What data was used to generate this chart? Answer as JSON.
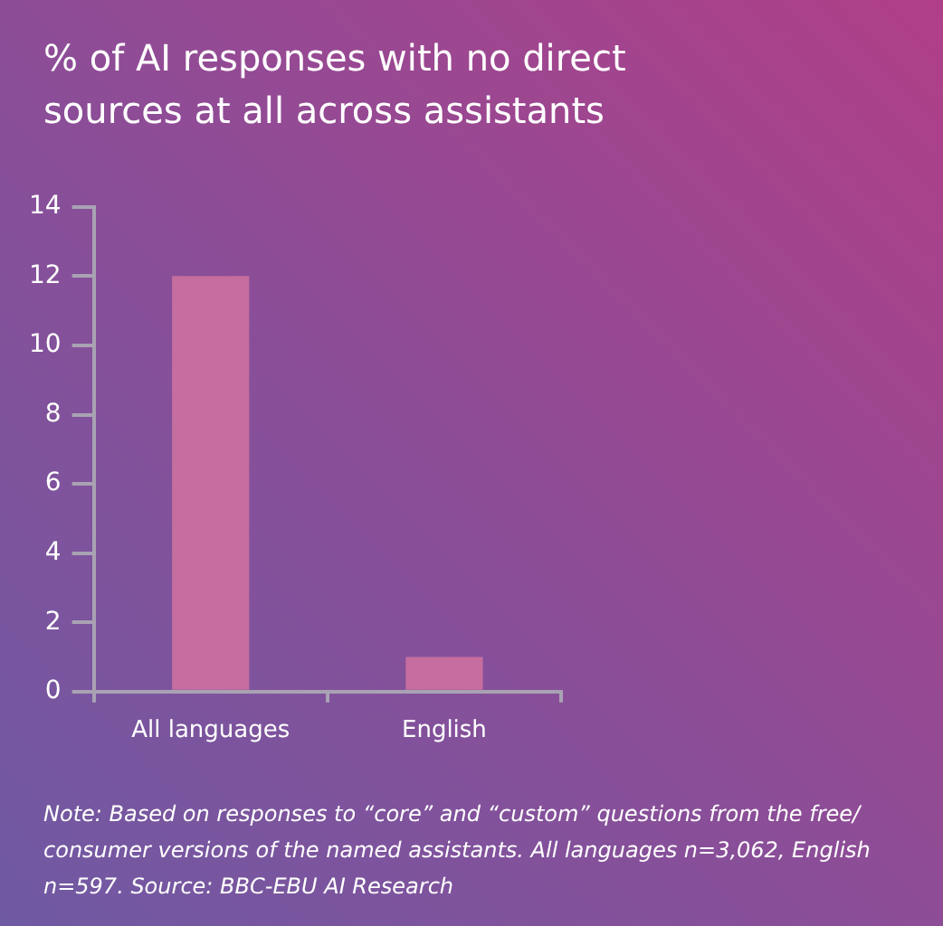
{
  "chart_data": {
    "type": "bar",
    "title": "% of AI responses with no direct sources at all across assistants",
    "categories": [
      "All languages",
      "English"
    ],
    "values": [
      12,
      1
    ],
    "color": "#c56e9f",
    "ylim": [
      0,
      14
    ],
    "yticks": [
      0,
      2,
      4,
      6,
      8,
      10,
      12,
      14
    ],
    "grid": false,
    "legend": false,
    "annotations": [
      "Note: Based on responses to “core” and “custom” questions from the free/ consumer versions of the named assistants. All languages  n=3,062, English n=597. Source: BBC-EBU AI Research"
    ]
  }
}
